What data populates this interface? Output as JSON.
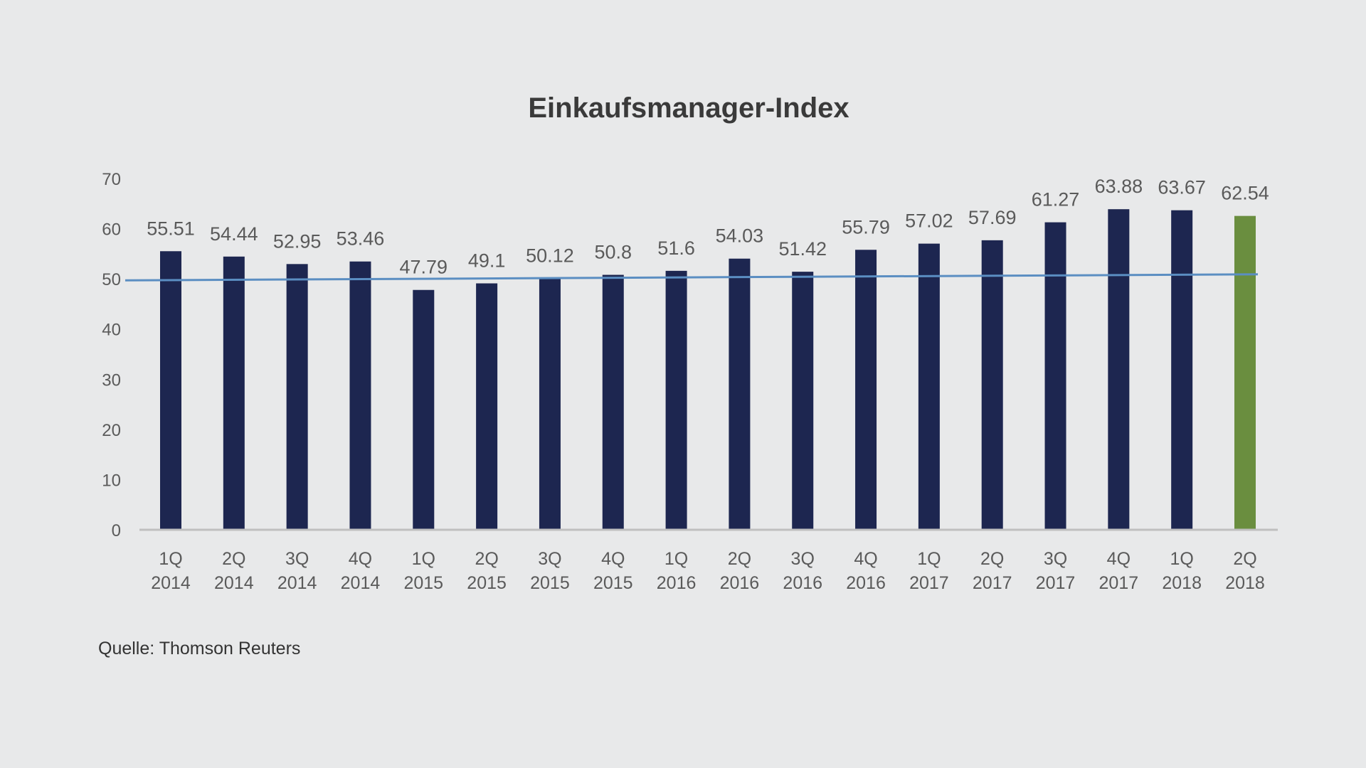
{
  "chart_data": {
    "type": "bar",
    "title": "Einkaufsmanager-Index",
    "xlabel": "",
    "ylabel": "",
    "ylim": [
      0,
      70
    ],
    "yticks": [
      0,
      10,
      20,
      30,
      40,
      50,
      60,
      70
    ],
    "categories": [
      [
        "1Q",
        "2014"
      ],
      [
        "2Q",
        "2014"
      ],
      [
        "3Q",
        "2014"
      ],
      [
        "4Q",
        "2014"
      ],
      [
        "1Q",
        "2015"
      ],
      [
        "2Q",
        "2015"
      ],
      [
        "3Q",
        "2015"
      ],
      [
        "4Q",
        "2015"
      ],
      [
        "1Q",
        "2016"
      ],
      [
        "2Q",
        "2016"
      ],
      [
        "3Q",
        "2016"
      ],
      [
        "4Q",
        "2016"
      ],
      [
        "1Q",
        "2017"
      ],
      [
        "2Q",
        "2017"
      ],
      [
        "3Q",
        "2017"
      ],
      [
        "4Q",
        "2017"
      ],
      [
        "1Q",
        "2018"
      ],
      [
        "2Q",
        "2018"
      ]
    ],
    "values": [
      55.51,
      54.44,
      52.95,
      53.46,
      47.79,
      49.1,
      50.12,
      50.8,
      51.6,
      54.03,
      51.42,
      55.79,
      57.02,
      57.69,
      61.27,
      63.88,
      63.67,
      62.54
    ],
    "value_labels": [
      "55.51",
      "54.44",
      "52.95",
      "53.46",
      "47.79",
      "49.1",
      "50.12",
      "50.8",
      "51.6",
      "54.03",
      "51.42",
      "55.79",
      "57.02",
      "57.69",
      "61.27",
      "63.88",
      "63.67",
      "62.54"
    ],
    "bar_colors": [
      "#1d2650",
      "#1d2650",
      "#1d2650",
      "#1d2650",
      "#1d2650",
      "#1d2650",
      "#1d2650",
      "#1d2650",
      "#1d2650",
      "#1d2650",
      "#1d2650",
      "#1d2650",
      "#1d2650",
      "#1d2650",
      "#1d2650",
      "#1d2650",
      "#1d2650",
      "#6a8e3f"
    ],
    "trend_line": {
      "start": 49.7,
      "end": 50.9,
      "color": "#5b8ec2"
    },
    "grid": false,
    "legend": "none"
  },
  "source": "Quelle: Thomson Reuters"
}
